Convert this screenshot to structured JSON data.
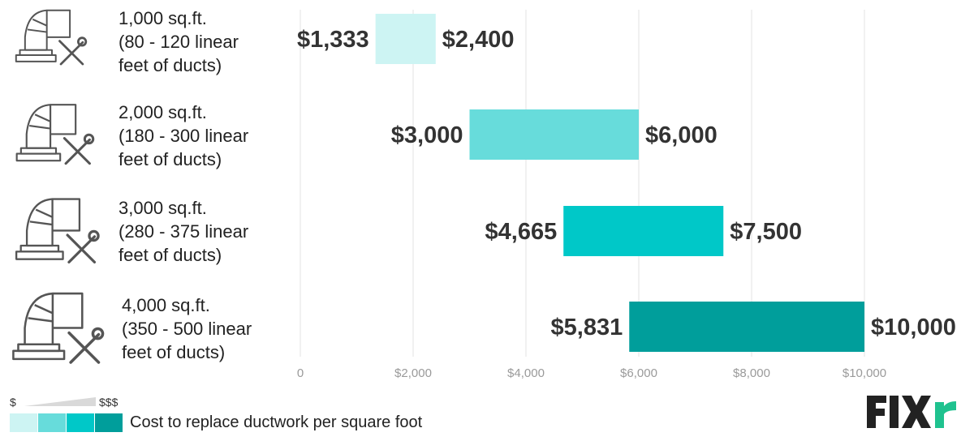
{
  "chart_data": {
    "type": "bar",
    "orientation": "horizontal-range",
    "categories": [
      {
        "title": "1,000 sq.ft.",
        "sub1": "(80 - 120 linear",
        "sub2": "feet of ducts)"
      },
      {
        "title": "2,000 sq.ft.",
        "sub1": "(180 - 300 linear",
        "sub2": "feet of ducts)"
      },
      {
        "title": "3,000 sq.ft.",
        "sub1": "(280 - 375 linear",
        "sub2": "feet of ducts)"
      },
      {
        "title": "4,000 sq.ft.",
        "sub1": "(350 - 500 linear",
        "sub2": "feet of ducts)"
      }
    ],
    "ranges": [
      {
        "low": 1333,
        "high": 2400,
        "low_label": "$1,333",
        "high_label": "$2,400",
        "color": "#cdf4f3"
      },
      {
        "low": 3000,
        "high": 6000,
        "low_label": "$3,000",
        "high_label": "$6,000",
        "color": "#67dcdb"
      },
      {
        "low": 4665,
        "high": 7500,
        "low_label": "$4,665",
        "high_label": "$7,500",
        "color": "#00c8c8"
      },
      {
        "low": 5831,
        "high": 10000,
        "low_label": "$5,831",
        "high_label": "$10,000",
        "color": "#009e9b"
      }
    ],
    "xlim": [
      0,
      10000
    ],
    "x_ticks": [
      0,
      2000,
      4000,
      6000,
      8000,
      10000
    ],
    "x_tick_labels": [
      "0",
      "$2,000",
      "$4,000",
      "$6,000",
      "$8,000",
      "$10,000"
    ],
    "grid": true
  },
  "legend": {
    "low_marker": "$",
    "high_marker": "$$$",
    "colors": [
      "#cdf4f3",
      "#67dcdb",
      "#00c8c8",
      "#009e9b"
    ],
    "text": "Cost to replace ductwork per square foot"
  },
  "brand": {
    "name": "FIXR",
    "icon": "fixr-logo"
  },
  "icons": [
    "duct-tools-icon",
    "duct-tools-icon",
    "duct-tools-icon",
    "duct-tools-icon"
  ]
}
